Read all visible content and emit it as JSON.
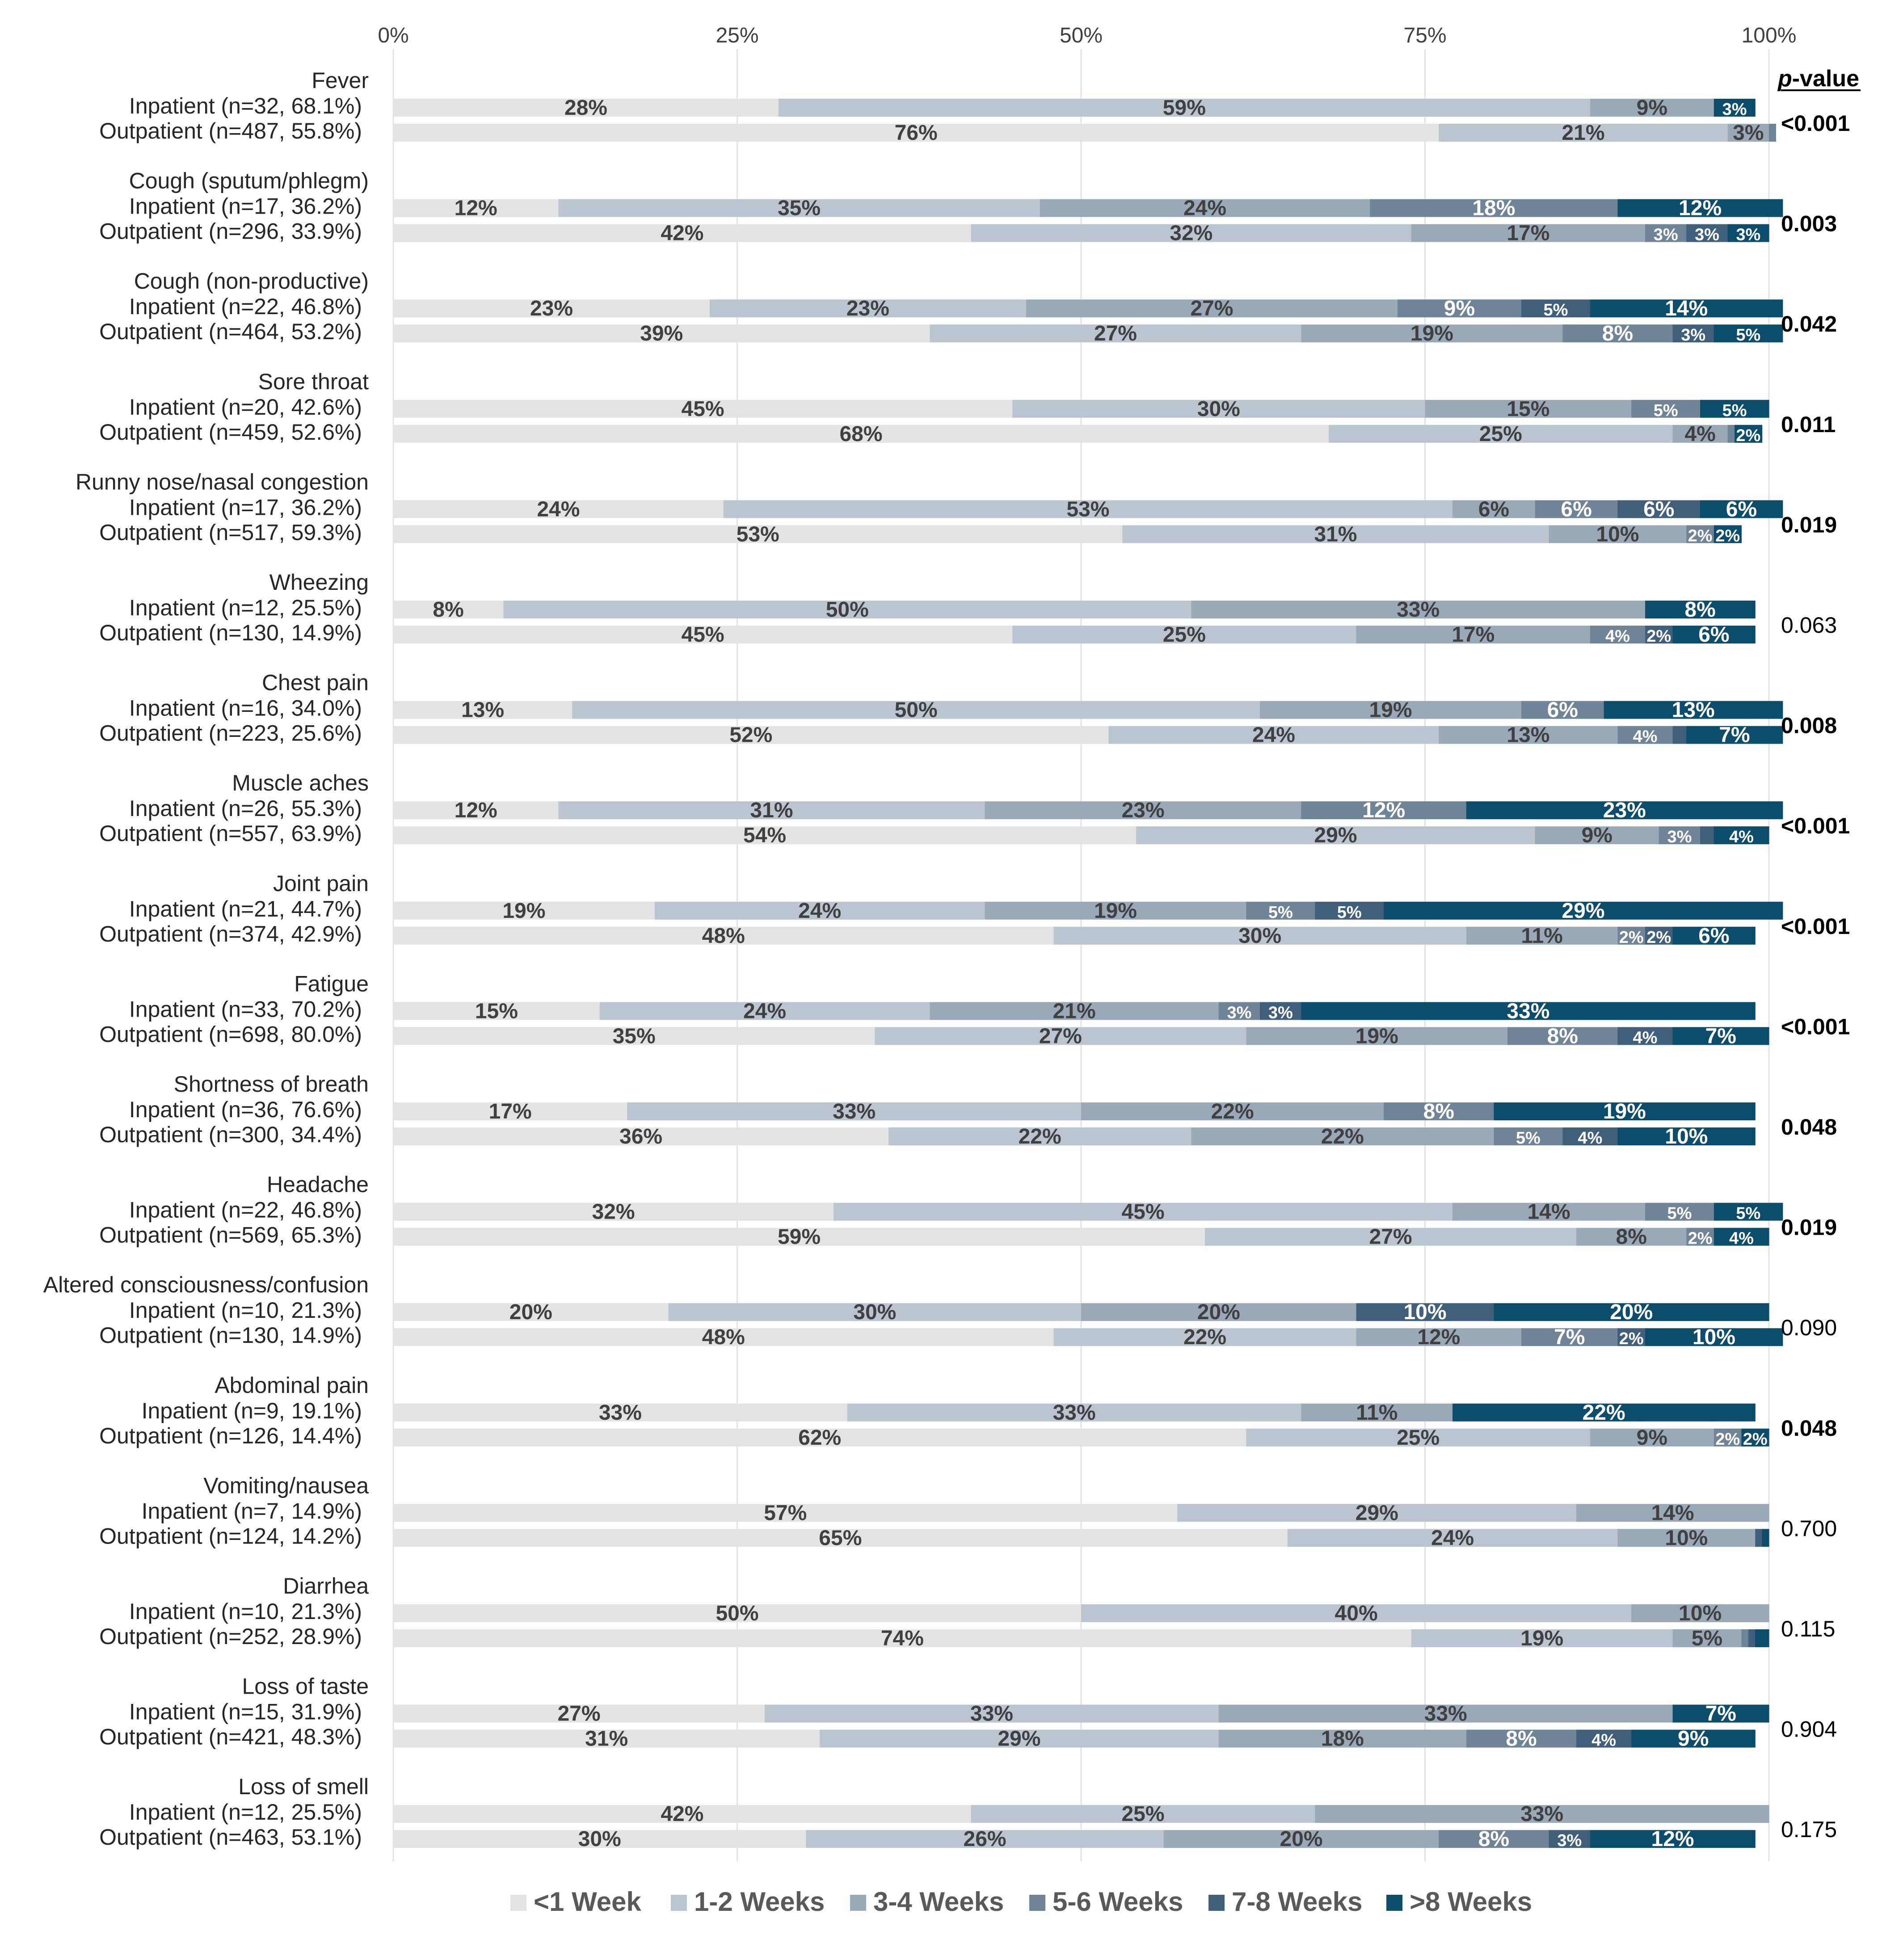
{
  "chart_data": {
    "type": "stacked-bar-horizontal-percent",
    "x_axis": {
      "ticks": [
        "0%",
        "25%",
        "50%",
        "75%",
        "100%"
      ],
      "range": [
        0,
        100
      ]
    },
    "legend": [
      {
        "name": "<1 Week",
        "color": "#e3e3e3"
      },
      {
        "name": "1-2 Weeks",
        "color": "#bcc5cf"
      },
      {
        "name": "3-4 Weeks",
        "color": "#9aa9b8"
      },
      {
        "name": "5-6 Weeks",
        "color": "#6f8497"
      },
      {
        "name": "7-8 Weeks",
        "color": "#3f5f7a"
      },
      {
        "name": ">8 Weeks",
        "color": "#0c4d6b"
      }
    ],
    "pvalue_header": {
      "italic": "p",
      "rest": "-value"
    },
    "symptoms": [
      {
        "name": "Fever",
        "pvalue": "<0.001",
        "pvalue_bold": true,
        "inpatient": {
          "label": "Inpatient (n=32, 68.1%)",
          "values": [
            28,
            59,
            9,
            0,
            0,
            3
          ]
        },
        "outpatient": {
          "label": "Outpatient (n=487, 55.8%)",
          "values": [
            76,
            21,
            3,
            0.5,
            0,
            0
          ]
        }
      },
      {
        "name": "Cough (sputum/phlegm)",
        "pvalue": "0.003",
        "pvalue_bold": true,
        "inpatient": {
          "label": "Inpatient (n=17, 36.2%)",
          "values": [
            12,
            35,
            24,
            18,
            0,
            12
          ]
        },
        "outpatient": {
          "label": "Outpatient (n=296, 33.9%)",
          "values": [
            42,
            32,
            17,
            3,
            3,
            3
          ]
        }
      },
      {
        "name": "Cough (non-productive)",
        "pvalue": "0.042",
        "pvalue_bold": true,
        "inpatient": {
          "label": "Inpatient (n=22, 46.8%)",
          "values": [
            23,
            23,
            27,
            9,
            5,
            14
          ]
        },
        "outpatient": {
          "label": "Outpatient (n=464, 53.2%)",
          "values": [
            39,
            27,
            19,
            8,
            3,
            5
          ]
        }
      },
      {
        "name": "Sore throat",
        "pvalue": "0.011",
        "pvalue_bold": true,
        "inpatient": {
          "label": "Inpatient (n=20, 42.6%)",
          "values": [
            45,
            30,
            15,
            5,
            0,
            5
          ]
        },
        "outpatient": {
          "label": "Outpatient (n=459, 52.6%)",
          "values": [
            68,
            25,
            4,
            0.5,
            0,
            2
          ]
        }
      },
      {
        "name": "Runny nose/nasal congestion",
        "pvalue": "0.019",
        "pvalue_bold": true,
        "inpatient": {
          "label": "Inpatient (n=17, 36.2%)",
          "values": [
            24,
            53,
            6,
            6,
            6,
            6
          ]
        },
        "outpatient": {
          "label": "Outpatient (n=517, 59.3%)",
          "values": [
            53,
            31,
            10,
            2,
            0,
            2
          ]
        }
      },
      {
        "name": "Wheezing",
        "pvalue": "0.063",
        "pvalue_bold": false,
        "inpatient": {
          "label": "Inpatient (n=12, 25.5%)",
          "values": [
            8,
            50,
            33,
            0,
            0,
            8
          ]
        },
        "outpatient": {
          "label": "Outpatient (n=130, 14.9%)",
          "values": [
            45,
            25,
            17,
            4,
            2,
            6
          ]
        }
      },
      {
        "name": "Chest pain",
        "pvalue": "0.008",
        "pvalue_bold": true,
        "inpatient": {
          "label": "Inpatient (n=16, 34.0%)",
          "values": [
            13,
            50,
            19,
            6,
            0,
            13
          ]
        },
        "outpatient": {
          "label": "Outpatient (n=223, 25.6%)",
          "values": [
            52,
            24,
            13,
            4,
            1,
            7
          ]
        }
      },
      {
        "name": "Muscle aches",
        "pvalue": "<0.001",
        "pvalue_bold": true,
        "inpatient": {
          "label": "Inpatient (n=26, 55.3%)",
          "values": [
            12,
            31,
            23,
            12,
            0,
            23
          ]
        },
        "outpatient": {
          "label": "Outpatient (n=557, 63.9%)",
          "values": [
            54,
            29,
            9,
            3,
            1,
            4
          ]
        }
      },
      {
        "name": "Joint pain",
        "pvalue": "<0.001",
        "pvalue_bold": true,
        "inpatient": {
          "label": "Inpatient (n=21, 44.7%)",
          "values": [
            19,
            24,
            19,
            5,
            5,
            29
          ]
        },
        "outpatient": {
          "label": "Outpatient (n=374, 42.9%)",
          "values": [
            48,
            30,
            11,
            2,
            2,
            6
          ]
        }
      },
      {
        "name": "Fatigue",
        "pvalue": "<0.001",
        "pvalue_bold": true,
        "inpatient": {
          "label": "Inpatient (n=33, 70.2%)",
          "values": [
            15,
            24,
            21,
            3,
            3,
            33
          ]
        },
        "outpatient": {
          "label": "Outpatient (n=698, 80.0%)",
          "values": [
            35,
            27,
            19,
            8,
            4,
            7
          ]
        }
      },
      {
        "name": "Shortness of breath",
        "pvalue": "0.048",
        "pvalue_bold": true,
        "inpatient": {
          "label": "Inpatient (n=36, 76.6%)",
          "values": [
            17,
            33,
            22,
            8,
            0,
            19
          ]
        },
        "outpatient": {
          "label": "Outpatient (n=300, 34.4%)",
          "values": [
            36,
            22,
            22,
            5,
            4,
            10
          ]
        }
      },
      {
        "name": "Headache",
        "pvalue": "0.019",
        "pvalue_bold": true,
        "inpatient": {
          "label": "Inpatient (n=22, 46.8%)",
          "values": [
            32,
            45,
            14,
            5,
            0,
            5
          ]
        },
        "outpatient": {
          "label": "Outpatient (n=569, 65.3%)",
          "values": [
            59,
            27,
            8,
            2,
            0,
            4
          ]
        }
      },
      {
        "name": "Altered consciousness/confusion",
        "pvalue": "0.090",
        "pvalue_bold": false,
        "inpatient": {
          "label": "Inpatient (n=10, 21.3%)",
          "values": [
            20,
            30,
            20,
            0,
            10,
            20
          ]
        },
        "outpatient": {
          "label": "Outpatient (n=130, 14.9%)",
          "values": [
            48,
            22,
            12,
            7,
            2,
            10
          ]
        }
      },
      {
        "name": "Abdominal pain",
        "pvalue": "0.048",
        "pvalue_bold": true,
        "inpatient": {
          "label": "Inpatient (n=9, 19.1%)",
          "values": [
            33,
            33,
            11,
            0,
            0,
            22
          ]
        },
        "outpatient": {
          "label": "Outpatient (n=126, 14.4%)",
          "values": [
            62,
            25,
            9,
            2,
            0,
            2
          ]
        }
      },
      {
        "name": "Vomiting/nausea",
        "pvalue": "0.700",
        "pvalue_bold": false,
        "inpatient": {
          "label": "Inpatient (n=7, 14.9%)",
          "values": [
            57,
            29,
            14,
            0,
            0,
            0
          ]
        },
        "outpatient": {
          "label": "Outpatient (n=124, 14.2%)",
          "values": [
            65,
            24,
            10,
            0,
            0.5,
            0.5
          ]
        }
      },
      {
        "name": "Diarrhea",
        "pvalue": "0.115",
        "pvalue_bold": false,
        "inpatient": {
          "label": "Inpatient (n=10, 21.3%)",
          "values": [
            50,
            40,
            10,
            0,
            0,
            0
          ]
        },
        "outpatient": {
          "label": "Outpatient (n=252, 28.9%)",
          "values": [
            74,
            19,
            5,
            0.5,
            0.5,
            1
          ]
        }
      },
      {
        "name": "Loss of taste",
        "pvalue": "0.904",
        "pvalue_bold": false,
        "inpatient": {
          "label": "Inpatient (n=15, 31.9%)",
          "values": [
            27,
            33,
            33,
            0,
            0,
            7
          ]
        },
        "outpatient": {
          "label": "Outpatient (n=421, 48.3%)",
          "values": [
            31,
            29,
            18,
            8,
            4,
            9
          ]
        }
      },
      {
        "name": "Loss of smell",
        "pvalue": "0.175",
        "pvalue_bold": false,
        "inpatient": {
          "label": "Inpatient (n=12, 25.5%)",
          "values": [
            42,
            25,
            33,
            0,
            0,
            0
          ]
        },
        "outpatient": {
          "label": "Outpatient (n=463, 53.1%)",
          "values": [
            30,
            26,
            20,
            8,
            3,
            12
          ]
        }
      }
    ]
  }
}
